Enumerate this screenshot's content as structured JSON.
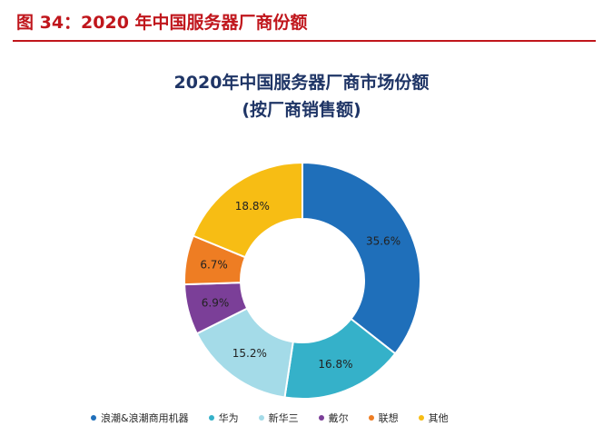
{
  "figure": {
    "label": "图 34：2020 年中国服务器厂商份额"
  },
  "chart_data": {
    "type": "pie",
    "variant": "donut",
    "title": "2020年中国服务器厂商市场份额",
    "subtitle": "(按厂商销售额)",
    "categories": [
      "浪潮&浪潮商用机器",
      "华为",
      "新华三",
      "戴尔",
      "联想",
      "其他"
    ],
    "values": [
      35.6,
      16.8,
      15.2,
      6.9,
      6.7,
      18.8
    ],
    "labels": [
      "35.6%",
      "16.8%",
      "15.2%",
      "6.9%",
      "6.7%",
      "18.8%"
    ],
    "unit": "%",
    "colors": [
      "#1f6fba",
      "#35b1c9",
      "#a4dbe8",
      "#7b3f98",
      "#ee7d23",
      "#f7bd14"
    ],
    "start_angle_deg": 0,
    "direction": "clockwise",
    "legend_position": "bottom"
  }
}
